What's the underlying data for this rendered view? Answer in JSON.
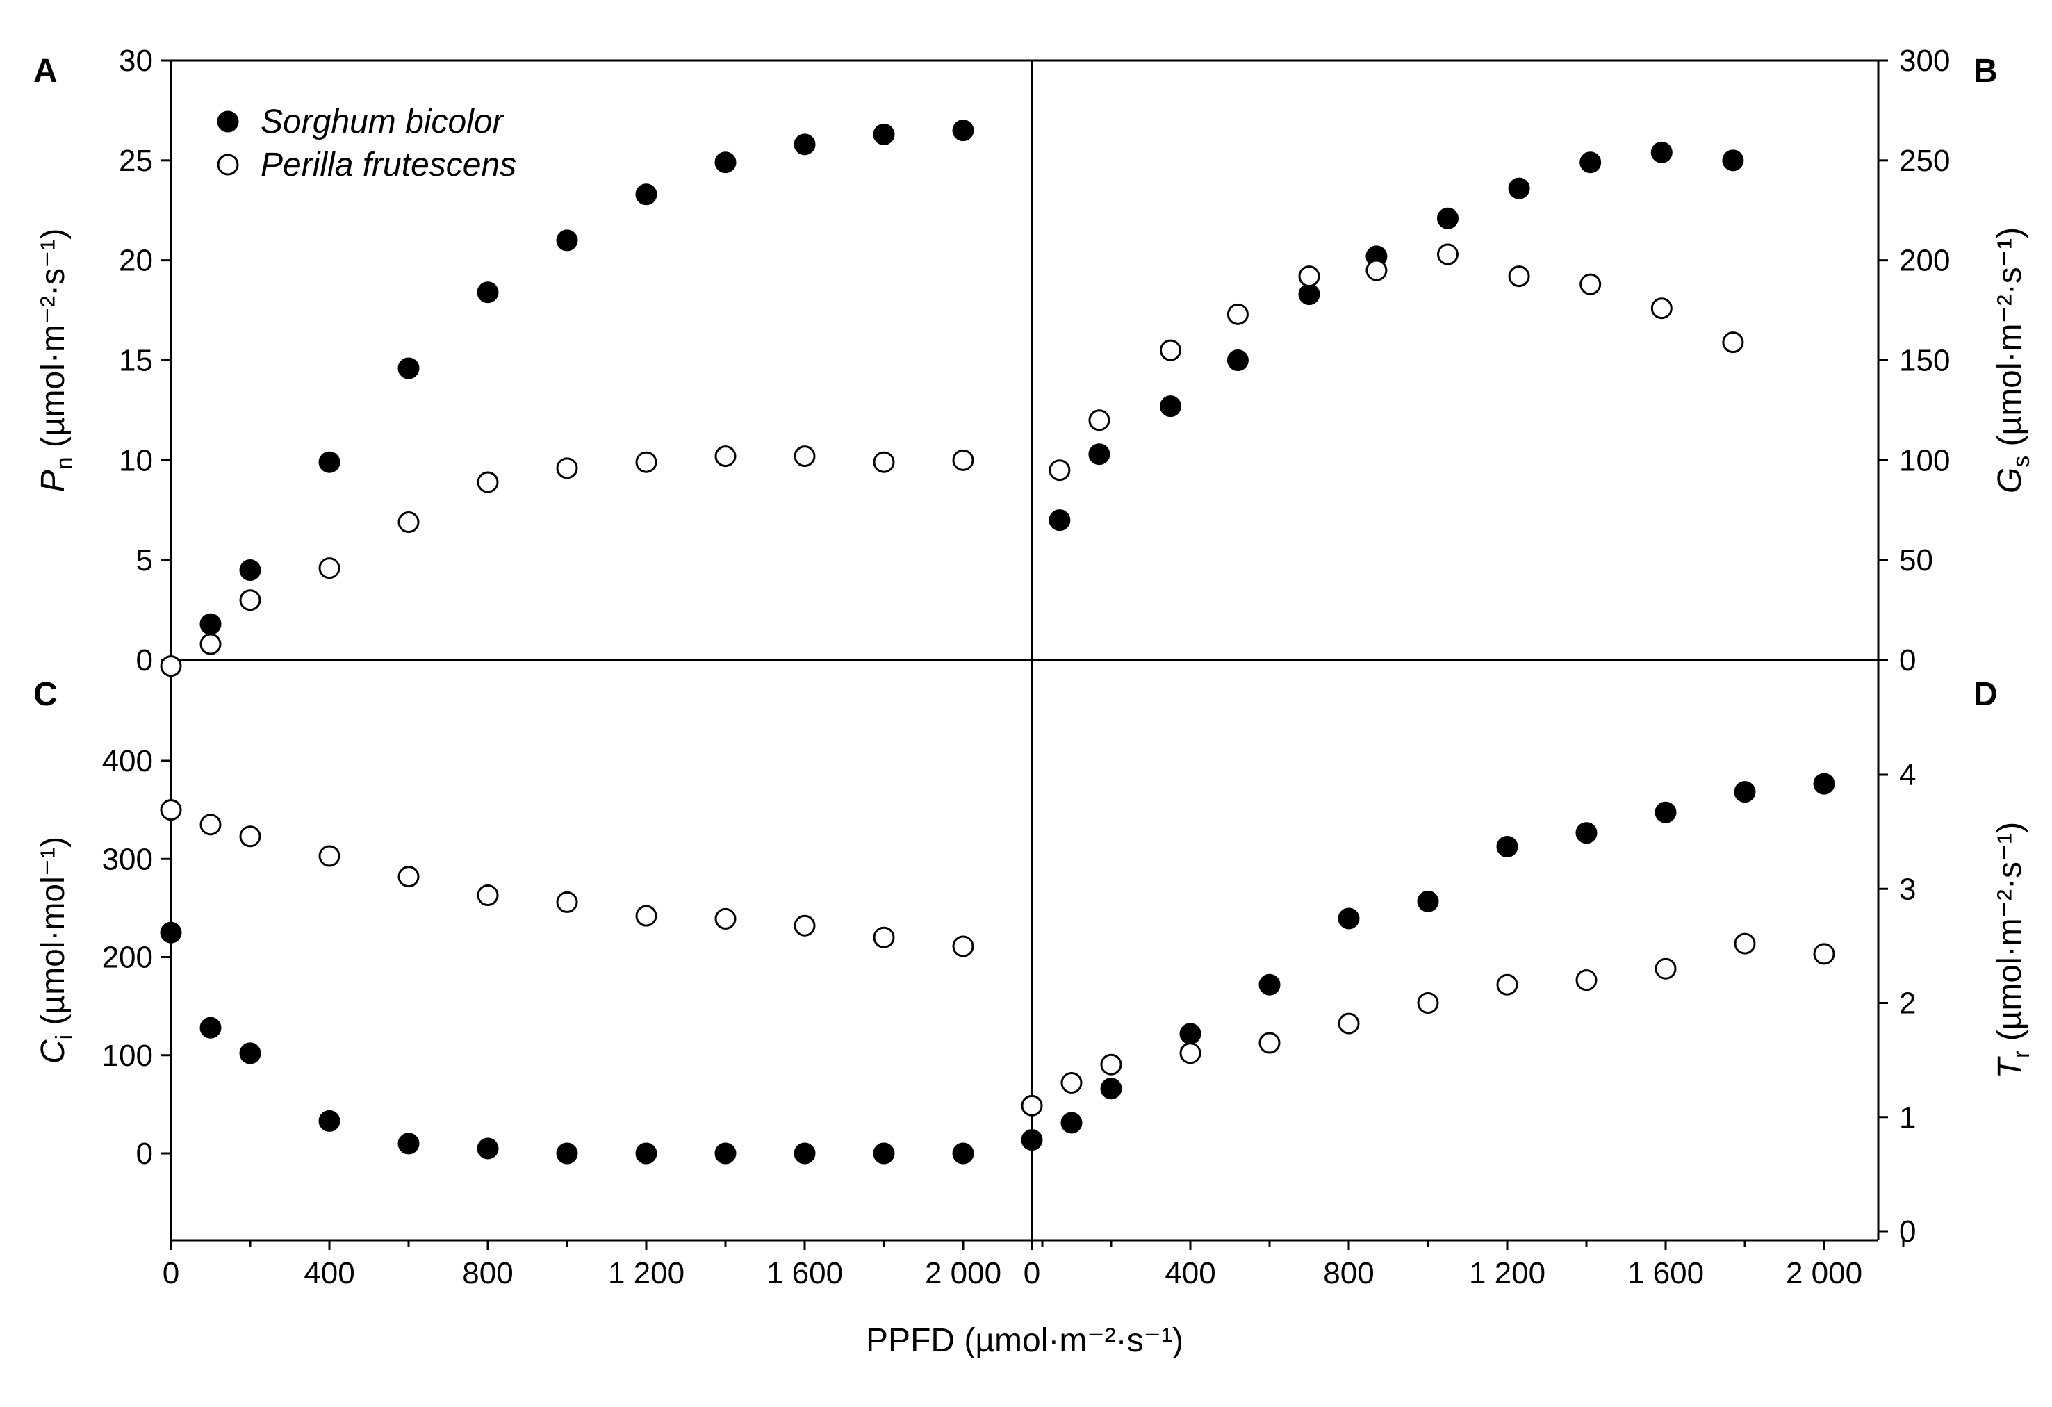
{
  "chart_data": [
    {
      "panel": "A",
      "type": "scatter",
      "ylabel": {
        "sym": "P",
        "sub": "n",
        "unit": " (µmol·m⁻²·s⁻¹)"
      },
      "xlim": [
        0,
        2200
      ],
      "ylim": [
        0,
        30
      ],
      "yticks": [
        "0",
        "5",
        "10",
        "15",
        "20",
        "25",
        "30"
      ],
      "series": [
        {
          "name": "Sorghum bicolor",
          "marker": "filled",
          "x": [
            100,
            200,
            400,
            600,
            800,
            1000,
            1200,
            1400,
            1600,
            1800,
            2000
          ],
          "y": [
            1.8,
            4.5,
            9.9,
            14.6,
            18.4,
            21.0,
            23.3,
            24.9,
            25.8,
            26.3,
            26.5
          ]
        },
        {
          "name": "Perilla frutescens",
          "marker": "open",
          "x": [
            0,
            100,
            200,
            400,
            600,
            800,
            1000,
            1200,
            1400,
            1600,
            1800,
            2000
          ],
          "y": [
            -0.3,
            0.8,
            3.0,
            4.6,
            6.9,
            8.9,
            9.6,
            9.9,
            10.2,
            10.2,
            9.9,
            10.0
          ]
        }
      ]
    },
    {
      "panel": "B",
      "type": "scatter",
      "ylabel": {
        "sym": "G",
        "sub": "s",
        "unit": " (µmol·m⁻²·s⁻¹)"
      },
      "xlim": [
        0,
        2200
      ],
      "ylim": [
        0,
        300
      ],
      "yticks": [
        "0",
        "50",
        "100",
        "150",
        "200",
        "250",
        "300"
      ],
      "series": [
        {
          "name": "Sorghum bicolor",
          "marker": "filled",
          "x": [
            70,
            170,
            350,
            520,
            700,
            870,
            1050,
            1230,
            1410,
            1590,
            1770
          ],
          "y": [
            70,
            103,
            127,
            150,
            183,
            202,
            221,
            236,
            249,
            254,
            250
          ]
        },
        {
          "name": "Perilla frutescens",
          "marker": "open",
          "x": [
            70,
            170,
            350,
            520,
            700,
            870,
            1050,
            1230,
            1410,
            1590,
            1770
          ],
          "y": [
            95,
            120,
            155,
            173,
            192,
            195,
            203,
            192,
            188,
            176,
            159
          ]
        }
      ]
    },
    {
      "panel": "C",
      "type": "scatter",
      "ylabel": {
        "sym": "C",
        "sub": "i",
        "unit": " (µmol·mol⁻¹)"
      },
      "xlim": [
        0,
        2200
      ],
      "ylim": [
        -80,
        500
      ],
      "yticks": [
        "0",
        "100",
        "200",
        "300",
        "400"
      ],
      "series": [
        {
          "name": "Sorghum bicolor",
          "marker": "filled",
          "x": [
            0,
            100,
            200,
            400,
            600,
            800,
            1000,
            1200,
            1400,
            1600,
            1800,
            2000
          ],
          "y": [
            225,
            128,
            102,
            33,
            10,
            5,
            0,
            0,
            0,
            0,
            0,
            0
          ]
        },
        {
          "name": "Perilla frutescens",
          "marker": "open",
          "x": [
            0,
            100,
            200,
            400,
            600,
            800,
            1000,
            1200,
            1400,
            1600,
            1800,
            2000
          ],
          "y": [
            350,
            335,
            323,
            303,
            282,
            263,
            256,
            242,
            239,
            232,
            220,
            211
          ]
        }
      ]
    },
    {
      "panel": "D",
      "type": "scatter",
      "ylabel": {
        "sym": "T",
        "sub": "r",
        "unit": " (µmol·m⁻²·s⁻¹)"
      },
      "xlim": [
        0,
        2200
      ],
      "ylim": [
        0,
        5
      ],
      "yticks": [
        "0",
        "1",
        "2",
        "3",
        "4"
      ],
      "series": [
        {
          "name": "Sorghum bicolor",
          "marker": "filled",
          "x": [
            0,
            100,
            200,
            400,
            600,
            800,
            1000,
            1200,
            1400,
            1600,
            1800,
            2000
          ],
          "y": [
            0.8,
            0.95,
            1.25,
            1.73,
            2.16,
            2.74,
            2.89,
            3.37,
            3.49,
            3.67,
            3.85,
            3.92
          ]
        },
        {
          "name": "Perilla frutescens",
          "marker": "open",
          "x": [
            0,
            100,
            200,
            400,
            600,
            800,
            1000,
            1200,
            1400,
            1600,
            1800,
            2000
          ],
          "y": [
            1.1,
            1.3,
            1.46,
            1.56,
            1.65,
            1.82,
            2.0,
            2.16,
            2.2,
            2.3,
            2.52,
            2.43
          ]
        }
      ]
    }
  ],
  "xaxis": {
    "label": "PPFD (µmol·m⁻²·s⁻¹)",
    "ticks": [
      "0",
      "400",
      "800",
      "1 200",
      "1 600",
      "2 000"
    ]
  },
  "legend": {
    "items": [
      {
        "name": "Sorghum bicolor",
        "marker": "filled"
      },
      {
        "name": "Perilla frutescens",
        "marker": "open"
      }
    ]
  }
}
